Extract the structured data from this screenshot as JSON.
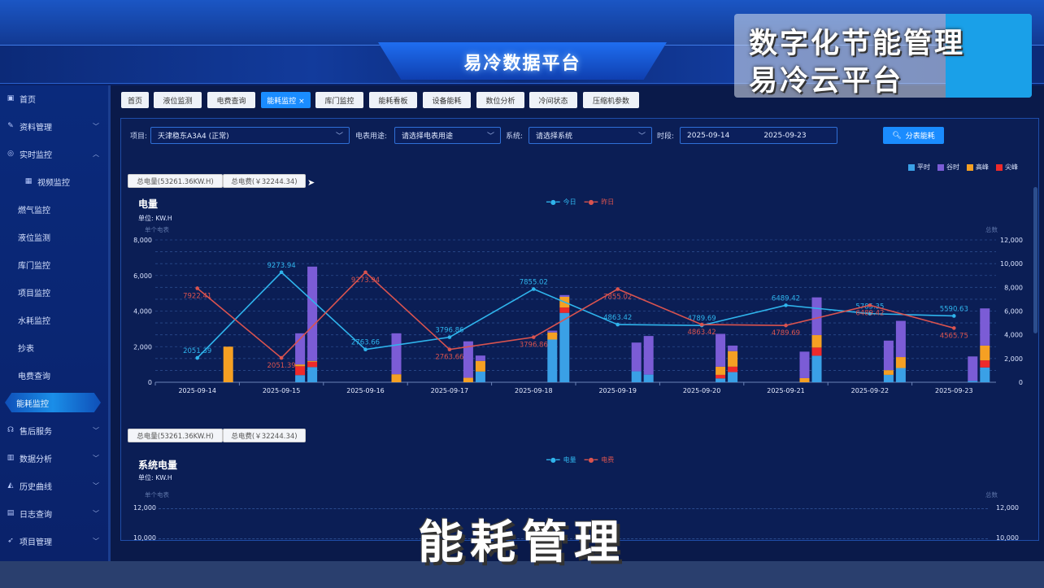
{
  "header": {
    "title": "易冷数据平台"
  },
  "overlay": {
    "line1": "数字化节能管理",
    "line2": "易冷云平台"
  },
  "caption": "能耗管理",
  "sidebar": {
    "items": [
      {
        "label": "首页",
        "icon": "home-icon",
        "chev": ""
      },
      {
        "label": "资料管理",
        "icon": "document-icon",
        "chev": "﹀"
      },
      {
        "label": "实时监控",
        "icon": "monitor-icon",
        "chev": "︿"
      },
      {
        "label": "视频监控",
        "icon": "grid-icon",
        "chev": "",
        "sub": true
      },
      {
        "label": "燃气监控",
        "sub": true,
        "chev": ""
      },
      {
        "label": "液位监测",
        "sub": true,
        "chev": ""
      },
      {
        "label": "库门监控",
        "sub": true,
        "chev": ""
      },
      {
        "label": "项目监控",
        "sub": true,
        "chev": ""
      },
      {
        "label": "水耗监控",
        "sub": true,
        "chev": ""
      },
      {
        "label": "抄表",
        "sub": true,
        "chev": ""
      },
      {
        "label": "电费查询",
        "sub": true,
        "chev": ""
      },
      {
        "label": "能耗监控",
        "sub": true,
        "active": true,
        "chev": ""
      },
      {
        "label": "售后服务",
        "icon": "headset-icon",
        "chev": "﹀"
      },
      {
        "label": "数据分析",
        "icon": "bar-chart-icon",
        "chev": "﹀"
      },
      {
        "label": "历史曲线",
        "icon": "area-chart-icon",
        "chev": "﹀"
      },
      {
        "label": "日志查询",
        "icon": "log-icon",
        "chev": "﹀"
      },
      {
        "label": "项目管理",
        "icon": "rocket-icon",
        "chev": "﹀"
      }
    ]
  },
  "tabs": [
    {
      "label": "首页"
    },
    {
      "label": "液位监测"
    },
    {
      "label": "电费查询"
    },
    {
      "label": "能耗监控 ×",
      "active": true
    },
    {
      "label": "库门监控"
    },
    {
      "label": "能耗看板"
    },
    {
      "label": "设备能耗"
    },
    {
      "label": "数位分析"
    },
    {
      "label": "冷间状态"
    },
    {
      "label": "压缩机参数"
    }
  ],
  "filters": {
    "project_label": "项目:",
    "project_value": "天津稳东A3A4 (正常)",
    "meter_label": "电表用途:",
    "meter_placeholder": "请选择电表用途",
    "system_label": "系统:",
    "system_placeholder": "请选择系统",
    "period_label": "时段:",
    "date_start": "2025-09-14",
    "date_end": "2025-09-23",
    "query_button": "分表能耗"
  },
  "summary": {
    "total_power": "总电量(53261.36KW.H)",
    "total_cost": "总电费(￥32244.34)"
  },
  "colors": {
    "today": "#2fb4ec",
    "yesterday": "#d9534f",
    "平时": "#3aa0e6",
    "谷时": "#7b5cd6",
    "高峰": "#f5a023",
    "尖峰": "#ee2a2a",
    "accent": "#1a8cff"
  },
  "chart_data": [
    {
      "type": "bar+line",
      "title": "电量",
      "unit": "单位: KW.H",
      "left_axis_name": "单个电表",
      "right_axis_name": "总数",
      "categories": [
        "2025-09-14",
        "2025-09-15",
        "2025-09-16",
        "2025-09-17",
        "2025-09-18",
        "2025-09-19",
        "2025-09-20",
        "2025-09-21",
        "2025-09-22",
        "2025-09-23"
      ],
      "left_ylim": [
        0,
        8000
      ],
      "left_ticks": [
        "0",
        "2,000",
        "4,000",
        "6,000",
        "8,000"
      ],
      "right_ylim": [
        0,
        12000
      ],
      "right_ticks": [
        "0",
        "2,000",
        "4,000",
        "6,000",
        "8,000",
        "10,000",
        "12,000"
      ],
      "grid": true,
      "line_legend": [
        "今日",
        "昨日"
      ],
      "lines": [
        {
          "name": "今日",
          "values": [
            2051.39,
            9273.94,
            2763.66,
            3796.86,
            7855.02,
            4863.42,
            4789.69,
            6489.42,
            5785.35,
            5590.63
          ]
        },
        {
          "name": "昨日",
          "values": [
            7922.41,
            2051.39,
            9273.94,
            2763.66,
            3796.86,
            7855.02,
            4863.42,
            4789.69,
            6489.42,
            4565.75
          ]
        }
      ],
      "bar_legend": [
        "平时",
        "谷时",
        "高峰",
        "尖峰"
      ],
      "bar_stacks": [
        {
          "平时": [
            0,
            400,
            0,
            0,
            2400,
            615,
            215,
            0,
            415,
            75
          ],
          "尖峰": [
            0,
            500,
            0,
            0,
            0,
            0,
            200,
            0,
            0,
            0
          ],
          "高峰": [
            0,
            100,
            0,
            250,
            400,
            0,
            460,
            230,
            265,
            0
          ],
          "谷时": [
            0,
            1750,
            0,
            2050,
            100,
            1615,
            1845,
            1490,
            1660,
            1375
          ]
        },
        {
          "平时": [
            0,
            850,
            0,
            600,
            3900,
            430,
            570,
            1490,
            800,
            830
          ],
          "尖峰": [
            0,
            300,
            0,
            0,
            300,
            0,
            305,
            460,
            0,
            400
          ],
          "高峰": [
            2000,
            50,
            450,
            600,
            600,
            0,
            875,
            700,
            615,
            830
          ],
          "谷时": [
            0,
            5300,
            2300,
            300,
            100,
            2170,
            310,
            2120,
            2035,
            2090
          ]
        }
      ]
    },
    {
      "type": "bar+line",
      "title": "系统电量",
      "unit": "单位: KW.H",
      "left_axis_name": "单个电表",
      "right_axis_name": "总数",
      "line_legend": [
        "电量",
        "电费"
      ],
      "left_ticks": [
        "10,000",
        "12,000"
      ],
      "right_ticks": [
        "10,000",
        "12,000"
      ]
    }
  ]
}
